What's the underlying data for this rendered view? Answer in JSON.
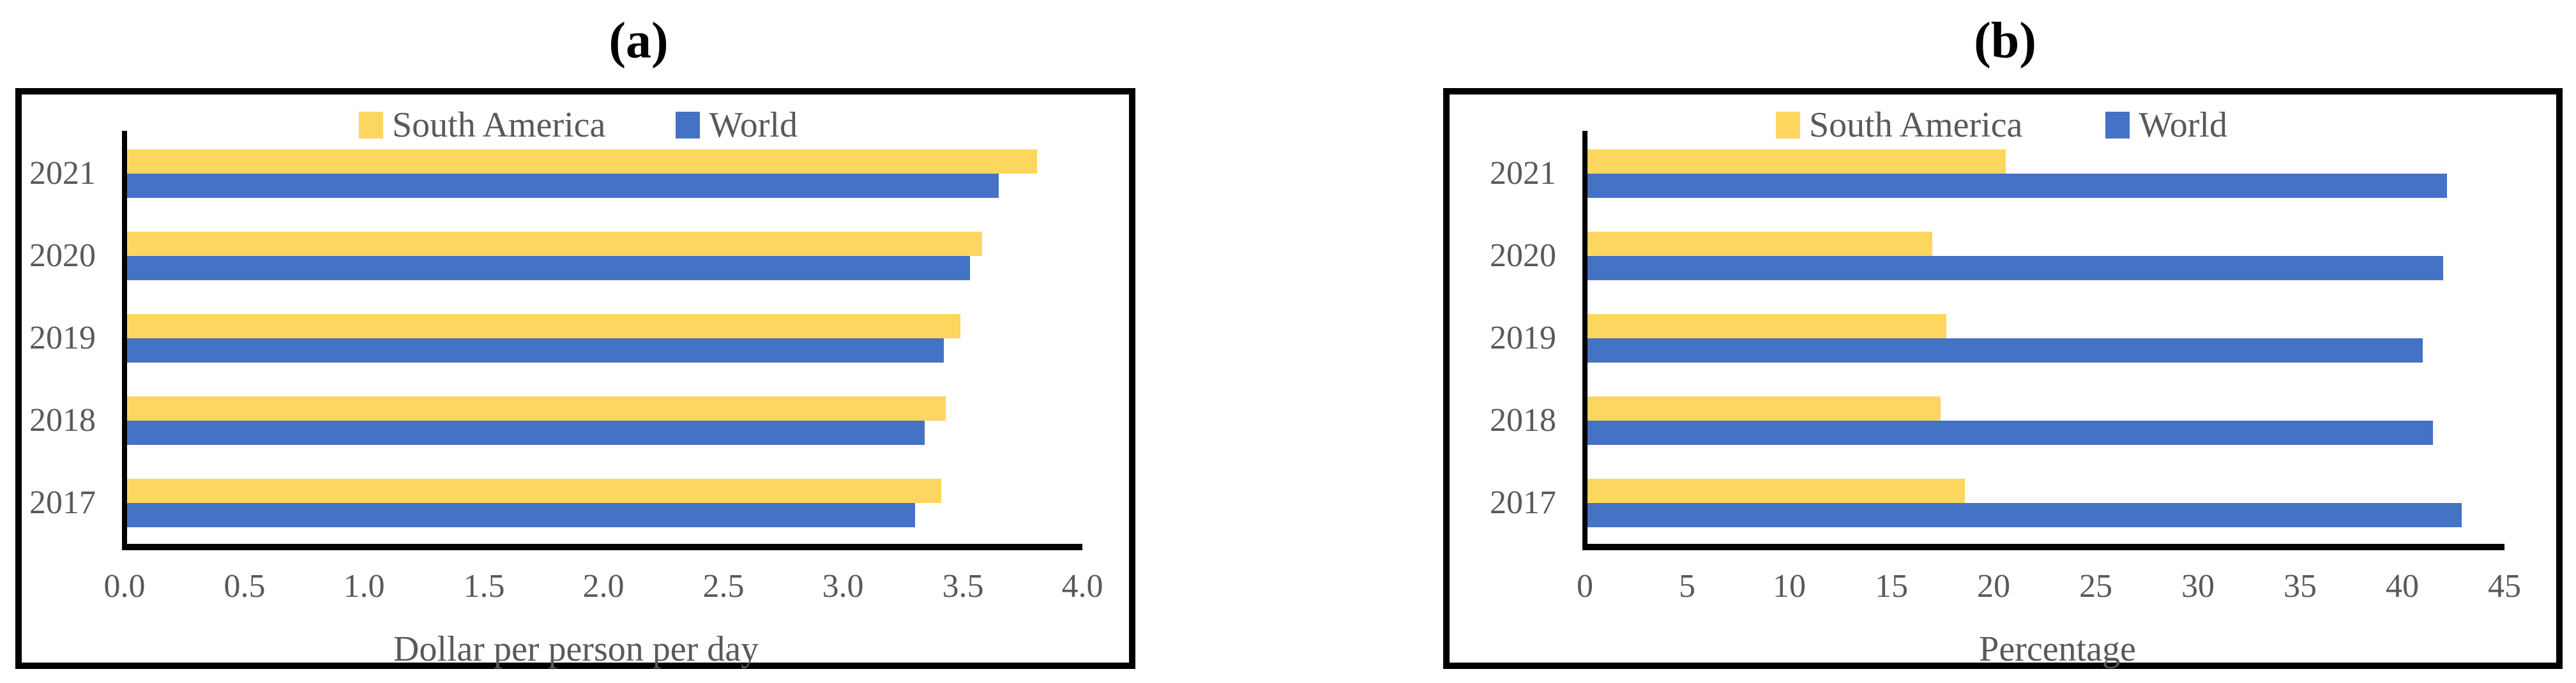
{
  "chart_data": [
    {
      "type": "bar",
      "orientation": "horizontal",
      "title": "(a)",
      "categories": [
        "2021",
        "2020",
        "2019",
        "2018",
        "2017"
      ],
      "series": [
        {
          "name": "South America",
          "color": "#FCD65F",
          "values": [
            3.81,
            3.58,
            3.49,
            3.43,
            3.41
          ]
        },
        {
          "name": "World",
          "color": "#4472C4",
          "values": [
            3.65,
            3.53,
            3.42,
            3.34,
            3.3
          ]
        }
      ],
      "xlabel": "Dollar per person per day",
      "ylabel": "",
      "xlim": [
        0,
        4.0
      ],
      "xticks": [
        "0.0",
        "0.5",
        "1.0",
        "1.5",
        "2.0",
        "2.5",
        "3.0",
        "3.5",
        "4.0"
      ],
      "legend_position": "top-center",
      "grid": false,
      "text_color": "#595959",
      "frame_color": "#000000"
    },
    {
      "type": "bar",
      "orientation": "horizontal",
      "title": "(b)",
      "categories": [
        "2021",
        "2020",
        "2019",
        "2018",
        "2017"
      ],
      "series": [
        {
          "name": "South America",
          "color": "#FCD65F",
          "values": [
            20.6,
            17.0,
            17.7,
            17.4,
            18.6
          ]
        },
        {
          "name": "World",
          "color": "#4472C4",
          "values": [
            42.2,
            42.0,
            41.0,
            41.5,
            42.9
          ]
        }
      ],
      "xlabel": "Percentage",
      "ylabel": "",
      "xlim": [
        0,
        45
      ],
      "xticks": [
        "0",
        "5",
        "10",
        "15",
        "20",
        "25",
        "30",
        "35",
        "40",
        "45"
      ],
      "legend_position": "top-center",
      "grid": false,
      "text_color": "#595959",
      "frame_color": "#000000"
    }
  ]
}
